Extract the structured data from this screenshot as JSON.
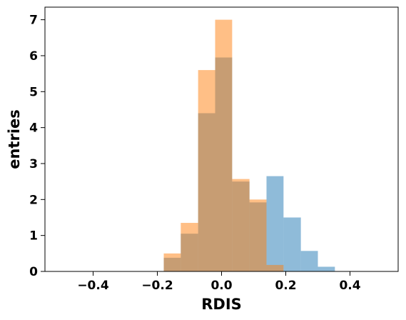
{
  "chart_data": {
    "type": "bar",
    "subtype": "overlaid-histogram",
    "xlabel": "RDIS",
    "ylabel": "entries",
    "xlim": [
      -0.55,
      0.55
    ],
    "ylim": [
      0,
      7.35
    ],
    "xticks": [
      -0.4,
      -0.2,
      0.0,
      0.2,
      0.4
    ],
    "xtick_labels": [
      "−0.4",
      "−0.2",
      "0.0",
      "0.2",
      "0.4"
    ],
    "yticks": [
      0,
      1,
      2,
      3,
      4,
      5,
      6,
      7
    ],
    "ytick_labels": [
      "0",
      "1",
      "2",
      "3",
      "4",
      "5",
      "6",
      "7"
    ],
    "grid": false,
    "bin_edges": [
      -0.5,
      -0.447,
      -0.393,
      -0.34,
      -0.287,
      -0.233,
      -0.18,
      -0.127,
      -0.073,
      -0.02,
      0.033,
      0.087,
      0.14,
      0.193,
      0.247,
      0.3,
      0.353,
      0.407,
      0.46,
      0.5
    ],
    "series": [
      {
        "color": "#1f77b4",
        "alpha": 0.5,
        "values": [
          0,
          0,
          0,
          0,
          0,
          0,
          0.38,
          1.05,
          4.4,
          5.95,
          2.5,
          1.92,
          2.65,
          1.5,
          0.57,
          0.13,
          0,
          0,
          0
        ]
      },
      {
        "color": "#ff7f0e",
        "alpha": 0.5,
        "values": [
          0,
          0,
          0,
          0,
          0,
          0,
          0.5,
          1.35,
          5.6,
          7.0,
          2.57,
          2.0,
          0.18,
          0,
          0,
          0,
          0,
          0,
          0
        ]
      }
    ]
  }
}
